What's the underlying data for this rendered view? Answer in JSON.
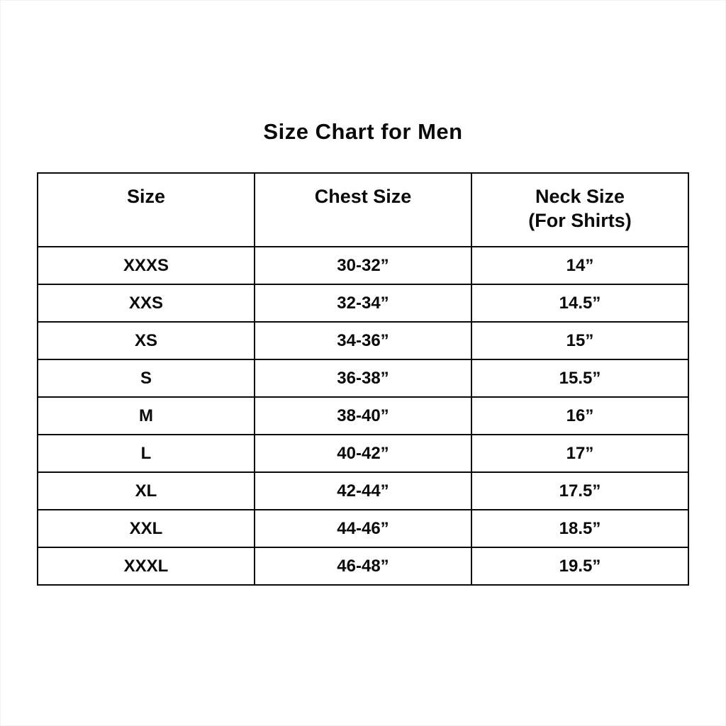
{
  "page": {
    "title": "Size Chart for Men"
  },
  "table": {
    "headers": [
      {
        "label": "Size",
        "sub": ""
      },
      {
        "label": "Chest Size",
        "sub": ""
      },
      {
        "label": "Neck Size",
        "sub": "(For Shirts)"
      }
    ],
    "rows": [
      {
        "size": "XXXS",
        "chest": "30-32”",
        "neck": "14”"
      },
      {
        "size": "XXS",
        "chest": "32-34”",
        "neck": "14.5”"
      },
      {
        "size": "XS",
        "chest": "34-36”",
        "neck": "15”"
      },
      {
        "size": "S",
        "chest": "36-38”",
        "neck": "15.5”"
      },
      {
        "size": "M",
        "chest": "38-40”",
        "neck": "16”"
      },
      {
        "size": "L",
        "chest": "40-42”",
        "neck": "17”"
      },
      {
        "size": "XL",
        "chest": "42-44”",
        "neck": "17.5”"
      },
      {
        "size": "XXL",
        "chest": "44-46”",
        "neck": "18.5”"
      },
      {
        "size": "XXXL",
        "chest": "46-48”",
        "neck": "19.5”"
      }
    ]
  },
  "chart_data": {
    "type": "table",
    "title": "Size Chart for Men",
    "columns": [
      "Size",
      "Chest Size",
      "Neck Size (For Shirts)"
    ],
    "rows": [
      [
        "XXXS",
        "30-32”",
        "14”"
      ],
      [
        "XXS",
        "32-34”",
        "14.5”"
      ],
      [
        "XS",
        "34-36”",
        "15”"
      ],
      [
        "S",
        "36-38”",
        "15.5”"
      ],
      [
        "M",
        "38-40”",
        "16”"
      ],
      [
        "L",
        "40-42”",
        "17”"
      ],
      [
        "XL",
        "42-44”",
        "17.5”"
      ],
      [
        "XXL",
        "44-46”",
        "18.5”"
      ],
      [
        "XXXL",
        "46-48”",
        "19.5”"
      ]
    ],
    "layout": {
      "grid": true,
      "text_color": "#0a0a0a",
      "border_color": "#0a0a0a",
      "background": "#ffffff"
    }
  }
}
